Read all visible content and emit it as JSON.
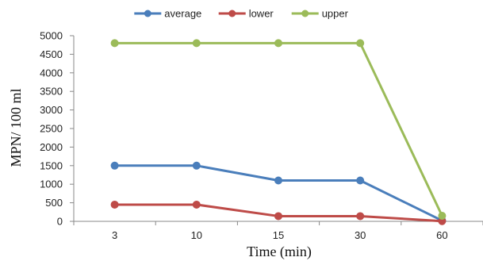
{
  "chart_data": {
    "type": "line",
    "categories": [
      "3",
      "10",
      "15",
      "30",
      "60"
    ],
    "series": [
      {
        "name": "average",
        "color": "#4a7ebb",
        "values": [
          1500,
          1500,
          1100,
          1100,
          20
        ]
      },
      {
        "name": "lower",
        "color": "#be4b48",
        "values": [
          450,
          450,
          140,
          140,
          5
        ]
      },
      {
        "name": "upper",
        "color": "#9bbb59",
        "values": [
          4800,
          4800,
          4800,
          4800,
          150
        ]
      }
    ],
    "title": "",
    "xlabel": "Time (min)",
    "ylabel": "MPN/ 100 ml",
    "ylim": [
      0,
      5000
    ],
    "yticks": [
      "0",
      "500",
      "1000",
      "1500",
      "2000",
      "2500",
      "3000",
      "3500",
      "4000",
      "4500",
      "5000"
    ],
    "grid": false,
    "legend": "top-center"
  }
}
